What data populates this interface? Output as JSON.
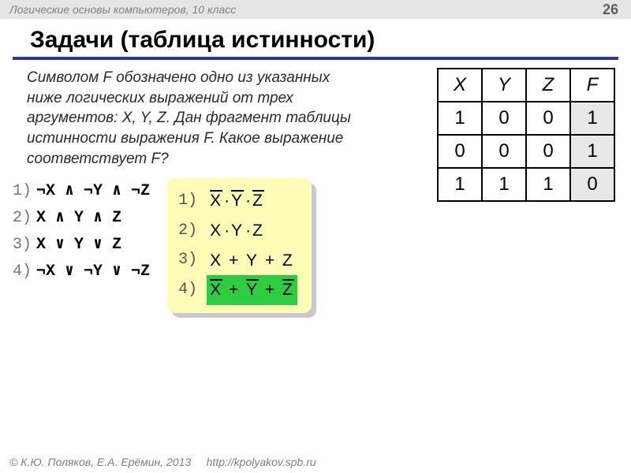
{
  "header": {
    "course": "Логические основы компьютеров, 10 класс",
    "page_number": "26"
  },
  "title": "Задачи (таблица истинности)",
  "problem_text": "Символом F обозначено одно из указанных ниже логических выражений от трех аргументов: X, Y, Z. Дан фрагмент таблицы истинности выражения F. Какое выражение соответствует F?",
  "truth_table": {
    "columns": [
      "X",
      "Y",
      "Z",
      "F"
    ],
    "rows": [
      [
        "1",
        "0",
        "0",
        "1"
      ],
      [
        "0",
        "0",
        "0",
        "1"
      ],
      [
        "1",
        "1",
        "1",
        "0"
      ]
    ],
    "highlight_col_index": 3
  },
  "left_options": [
    {
      "n": "1)",
      "text": "¬X ∧ ¬Y ∧ ¬Z"
    },
    {
      "n": "2)",
      "text": "X ∧ Y ∧ Z"
    },
    {
      "n": "3)",
      "text": "X ∨ Y ∨ Z"
    },
    {
      "n": "4)",
      "text": "¬X ∨ ¬Y ∨ ¬Z"
    }
  ],
  "right_options": [
    {
      "n": "1)",
      "expr_html": "<span class='ov'>X</span><span class='dot'>·</span><span class='ov'>Y</span><span class='dot'>·</span><span class='ov'>Z</span>",
      "highlight": false
    },
    {
      "n": "2)",
      "expr_html": "X<span class='dot'>·</span>Y<span class='dot'>·</span>Z",
      "highlight": false
    },
    {
      "n": "3)",
      "expr_html": "X&nbsp;+&nbsp;Y&nbsp;+&nbsp;Z",
      "highlight": false
    },
    {
      "n": "4)",
      "expr_html": "<span class='ov'>X</span>&nbsp;+&nbsp;<span class='ov'>Y</span>&nbsp;+&nbsp;<span class='ov'>Z</span>",
      "highlight": true
    }
  ],
  "footer": {
    "copyright": "© К.Ю. Поляков, Е.А. Ерёмин, 2013",
    "url": "http://kpolyakov.spb.ru"
  },
  "colors": {
    "title_underline": "#2a3a8f",
    "panel_bg": "#fdfdb7",
    "panel_shadow": "#c9c9c9",
    "highlight_green": "#2ecc40",
    "header_bg": "#e5e5e5",
    "muted_text": "#808080"
  }
}
